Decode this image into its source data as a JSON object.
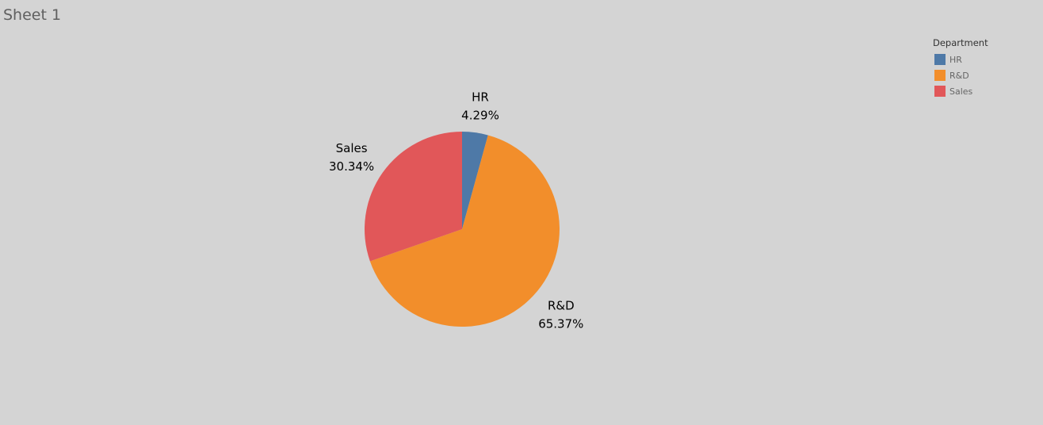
{
  "sheet": {
    "title": "Sheet 1"
  },
  "legend": {
    "title": "Department",
    "items": [
      {
        "label": "HR",
        "color": "#4e79a7"
      },
      {
        "label": "R&D",
        "color": "#f28e2b"
      },
      {
        "label": "Sales",
        "color": "#e15759"
      }
    ]
  },
  "chart_data": {
    "type": "pie",
    "categories": [
      "HR",
      "R&D",
      "Sales"
    ],
    "values": [
      4.29,
      65.37,
      30.34
    ],
    "value_labels": [
      "4.29%",
      "65.37%",
      "30.34%"
    ],
    "colors": [
      "#4e79a7",
      "#f28e2b",
      "#e15759"
    ],
    "start_angle": "12 o'clock",
    "direction": "clockwise",
    "legend_position": "top-right"
  }
}
